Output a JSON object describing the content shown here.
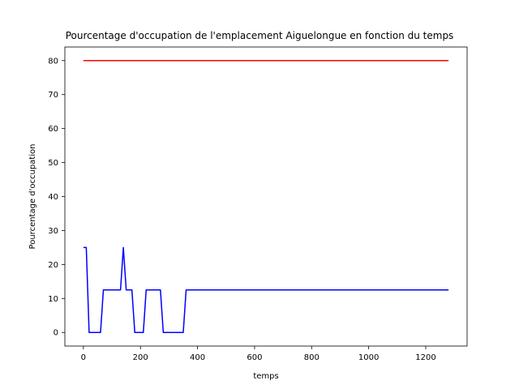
{
  "chart_data": {
    "type": "line",
    "title": "Pourcentage d'occupation de l'emplacement Aiguelongue en fonction du temps",
    "xlabel": "temps",
    "ylabel": "Pourcentage d'occupation",
    "xlim": [
      -65,
      1345
    ],
    "ylim": [
      -4,
      84
    ],
    "x_ticks": [
      0,
      200,
      400,
      600,
      800,
      1000,
      1200
    ],
    "y_ticks": [
      0,
      10,
      20,
      30,
      40,
      50,
      60,
      70,
      80
    ],
    "grid": false,
    "series": [
      {
        "color": "#ff0000",
        "x": [
          0,
          1280
        ],
        "y": [
          80,
          80
        ]
      },
      {
        "color": "#0000ff",
        "x": [
          0,
          10,
          20,
          60,
          70,
          130,
          140,
          150,
          170,
          180,
          210,
          220,
          270,
          280,
          350,
          360,
          1280
        ],
        "y": [
          25,
          25,
          0,
          0,
          12.5,
          12.5,
          25,
          12.5,
          12.5,
          0,
          0,
          12.5,
          12.5,
          0,
          0,
          12.5,
          12.5
        ]
      }
    ]
  }
}
